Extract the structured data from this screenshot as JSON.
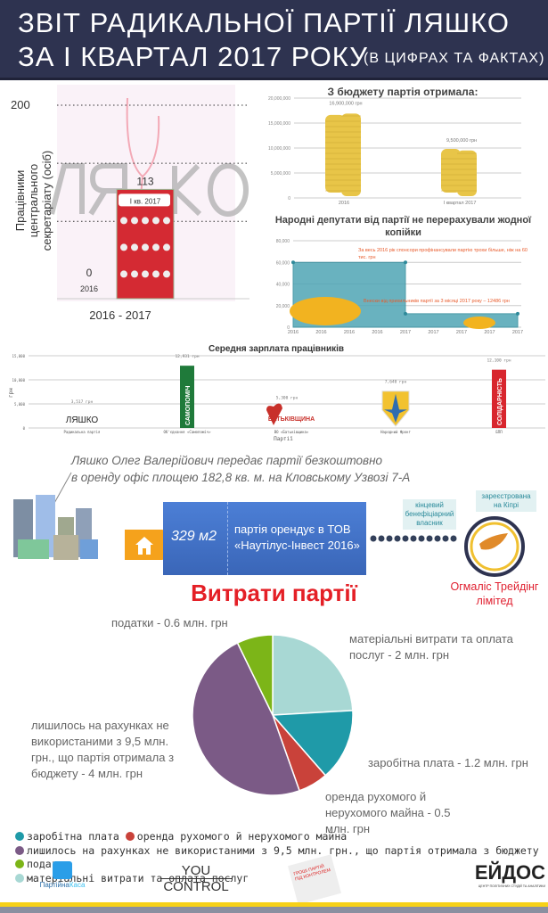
{
  "header": {
    "line1": "ЗВІТ РАДИКАЛЬНОЇ ПАРТІЇ ЛЯШКО",
    "line2": "ЗА І КВАРТАЛ 2017 РОКУ",
    "subtitle": "(В ЦИФРАХ ТА ФАКТАХ)"
  },
  "watermark": {
    "logo": "ЛЯШКО",
    "tagline": "РАДИКАЛЬНА ПАРТІЯ"
  },
  "chart_data": [
    {
      "type": "bar",
      "title": "",
      "ylabel": "Працівники центрального секретаріату (осіб)",
      "xlabel": "2016 - 2017",
      "ylim": [
        0,
        200
      ],
      "yticks": [
        "200"
      ],
      "categories": [
        "2016",
        "І кв. 2017"
      ],
      "values": [
        0,
        113
      ],
      "data_labels": [
        "0",
        "113"
      ]
    },
    {
      "type": "bar",
      "title": "З бюджету партія отримала:",
      "categories": [
        "2016",
        "І квартал 2017"
      ],
      "values": [
        16900000,
        9500000
      ],
      "data_labels": [
        "16,900,000 грн",
        "9,500,000 грн"
      ],
      "ylim": [
        0,
        20000000
      ],
      "yticks": [
        "0",
        "5,000,000",
        "10,000,000",
        "15,000,000",
        "20,000,000"
      ],
      "grid": true,
      "color": "#e8c548"
    },
    {
      "type": "area",
      "title": "Народні депутати від партії не перерахували жодної копійки",
      "x": [
        "2016",
        "2016",
        "2016",
        "2016",
        "2017",
        "2017",
        "2017",
        "2017",
        "2017"
      ],
      "values": [
        60000,
        60000,
        60000,
        60000,
        60000,
        12486,
        12486,
        12486,
        12486
      ],
      "ylim": [
        0,
        80000
      ],
      "yticks": [
        "0",
        "20,000",
        "40,000",
        "60,000",
        "80,000"
      ],
      "grid": true,
      "color": "#4fa5b5",
      "annotations": [
        "За весь 2016 рік спонсори профінансували партію трохи більше, ніж на 60 тис. грн",
        "Внески від прихильників партії за 3 місяці 2017 року – 12486 грн"
      ]
    },
    {
      "type": "bar",
      "title": "Середня зарплата працівників",
      "xlabel": "Партії",
      "ylabel": "грн",
      "ylim": [
        0,
        15000
      ],
      "yticks": [
        "0",
        "5,000",
        "10,000",
        "15,000"
      ],
      "grid": true,
      "categories": [
        "Радикальна партія",
        "Об'єднання «Самопоміч»",
        "ВО «Батьківщина»",
        "Народний Фронт",
        "БПП"
      ],
      "values": [
        3517,
        12931,
        5300,
        7640,
        12100
      ],
      "data_labels": [
        "3,517 грн",
        "12,931 грн",
        "5,300 грн",
        "7,640 грн",
        "12,100 грн"
      ],
      "logos": [
        "ЛЯШКО",
        "САМОПОМІЧ",
        "БАТЬКІВЩИНА",
        "",
        "СОЛІДАРНІСТЬ"
      ],
      "colors": [
        "#e03a3a",
        "#1f7a3a",
        "#c8302a",
        "#2f6db0",
        "#d8262e"
      ]
    },
    {
      "type": "pie",
      "title": "Витрати партії",
      "categories": [
        "матеріальні витрати та оплата послуг",
        "заробітна плата",
        "оренда рухомого й нерухомого майна",
        "лишилось на рахунках не використаними з 9,5 млн. грн., що партія отримала з бюджету",
        "податки"
      ],
      "values": [
        2,
        1.2,
        0.5,
        4,
        0.6
      ],
      "unit": "млн. грн",
      "colors": [
        "#a8d8d4",
        "#1f9aa8",
        "#c9423a",
        "#7b5a86",
        "#7cb518"
      ],
      "data_labels": [
        "матеріальні витрати та оплата послуг - 2 млн. грн",
        "заробітна плата  - 1.2 млн. грн",
        "оренда рухомого й нерухомого майна - 0.5 млн. грн",
        "лишилось на рахунках не використаними з 9,5 млн. грн., що партія отримала з бюджету  - 4 млн. грн",
        "податки - 0.6 млн. грн"
      ],
      "legend_position": "bottom"
    }
  ],
  "lease": {
    "text1": "Ляшко Олег Валерійович передає партії безкоштовно",
    "text2": "в оренду офіс площею 182,8 кв. м. на Кловському Узвозі 7-А",
    "area": "329 м2",
    "tenant1": "партія орендує в ТОВ",
    "tenant2": "«Наутілус-Інвест 2016»",
    "bubble1": [
      "кінцевий",
      "бенефіціарний",
      "власник"
    ],
    "bubble2": [
      "зареєстрована",
      "на Кіпрі"
    ],
    "owner1": "Огмаліс Трейдінг",
    "owner2": "лімітед"
  },
  "legend": [
    "заробітна плата",
    "оренда рухомого й нерухомого майна",
    "лишилось на рахунках не використаними з 9,5 млн. грн., що партія отримала з бюджету",
    "податки",
    "матеріальні витрати та оплата послуг"
  ],
  "footer": {
    "logo1a": "Партійна",
    "logo1b": "Каса",
    "logo2a": "YOU",
    "logo2b": "CONTROL",
    "logo3": "ГРОШІ ПАРТІЙ ПІД КОНТРОЛЕМ",
    "logo4": "ЕЙДОС",
    "logo4sub": "ЦЕНТР ПОЛІТИЧНИХ СТУДІЙ ТА АНАЛІТИКИ"
  }
}
